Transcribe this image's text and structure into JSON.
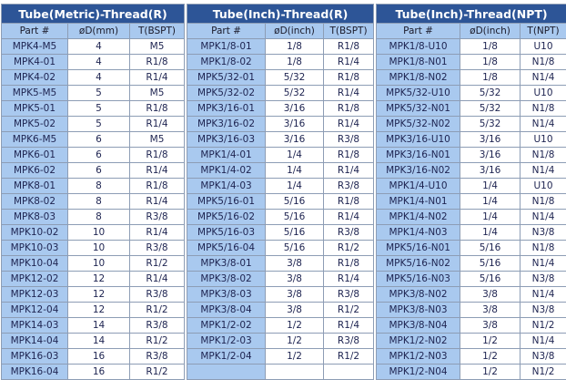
{
  "tables": [
    {
      "title": "Tube(Metric)-Thread(R)",
      "columns": [
        "Part #",
        "øD(mm)",
        "T(BSPT)"
      ],
      "rows": [
        [
          "MPK4-M5",
          "4",
          "M5"
        ],
        [
          "MPK4-01",
          "4",
          "R1/8"
        ],
        [
          "MPK4-02",
          "4",
          "R1/4"
        ],
        [
          "MPK5-M5",
          "5",
          "M5"
        ],
        [
          "MPK5-01",
          "5",
          "R1/8"
        ],
        [
          "MPK5-02",
          "5",
          "R1/4"
        ],
        [
          "MPK6-M5",
          "6",
          "M5"
        ],
        [
          "MPK6-01",
          "6",
          "R1/8"
        ],
        [
          "MPK6-02",
          "6",
          "R1/4"
        ],
        [
          "MPK8-01",
          "8",
          "R1/8"
        ],
        [
          "MPK8-02",
          "8",
          "R1/4"
        ],
        [
          "MPK8-03",
          "8",
          "R3/8"
        ],
        [
          "MPK10-02",
          "10",
          "R1/4"
        ],
        [
          "MPK10-03",
          "10",
          "R3/8"
        ],
        [
          "MPK10-04",
          "10",
          "R1/2"
        ],
        [
          "MPK12-02",
          "12",
          "R1/4"
        ],
        [
          "MPK12-03",
          "12",
          "R3/8"
        ],
        [
          "MPK12-04",
          "12",
          "R1/2"
        ],
        [
          "MPK14-03",
          "14",
          "R3/8"
        ],
        [
          "MPK14-04",
          "14",
          "R1/2"
        ],
        [
          "MPK16-03",
          "16",
          "R3/8"
        ],
        [
          "MPK16-04",
          "16",
          "R1/2"
        ]
      ]
    },
    {
      "title": "Tube(Inch)-Thread(R)",
      "columns": [
        "Part #",
        "øD(inch)",
        "T(BSPT)"
      ],
      "rows": [
        [
          "MPK1/8-01",
          "1/8",
          "R1/8"
        ],
        [
          "MPK1/8-02",
          "1/8",
          "R1/4"
        ],
        [
          "MPK5/32-01",
          "5/32",
          "R1/8"
        ],
        [
          "MPK5/32-02",
          "5/32",
          "R1/4"
        ],
        [
          "MPK3/16-01",
          "3/16",
          "R1/8"
        ],
        [
          "MPK3/16-02",
          "3/16",
          "R1/4"
        ],
        [
          "MPK3/16-03",
          "3/16",
          "R3/8"
        ],
        [
          "MPK1/4-01",
          "1/4",
          "R1/8"
        ],
        [
          "MPK1/4-02",
          "1/4",
          "R1/4"
        ],
        [
          "MPK1/4-03",
          "1/4",
          "R3/8"
        ],
        [
          "MPK5/16-01",
          "5/16",
          "R1/8"
        ],
        [
          "MPK5/16-02",
          "5/16",
          "R1/4"
        ],
        [
          "MPK5/16-03",
          "5/16",
          "R3/8"
        ],
        [
          "MPK5/16-04",
          "5/16",
          "R1/2"
        ],
        [
          "MPK3/8-01",
          "3/8",
          "R1/8"
        ],
        [
          "MPK3/8-02",
          "3/8",
          "R1/4"
        ],
        [
          "MPK3/8-03",
          "3/8",
          "R3/8"
        ],
        [
          "MPK3/8-04",
          "3/8",
          "R1/2"
        ],
        [
          "MPK1/2-02",
          "1/2",
          "R1/4"
        ],
        [
          "MPK1/2-03",
          "1/2",
          "R3/8"
        ],
        [
          "MPK1/2-04",
          "1/2",
          "R1/2"
        ]
      ]
    },
    {
      "title": "Tube(Inch)-Thread(NPT)",
      "columns": [
        "Part #",
        "øD(inch)",
        "T(NPT)"
      ],
      "rows": [
        [
          "MPK1/8-U10",
          "1/8",
          "U10"
        ],
        [
          "MPK1/8-N01",
          "1/8",
          "N1/8"
        ],
        [
          "MPK1/8-N02",
          "1/8",
          "N1/4"
        ],
        [
          "MPK5/32-U10",
          "5/32",
          "U10"
        ],
        [
          "MPK5/32-N01",
          "5/32",
          "N1/8"
        ],
        [
          "MPK5/32-N02",
          "5/32",
          "N1/4"
        ],
        [
          "MPK3/16-U10",
          "3/16",
          "U10"
        ],
        [
          "MPK3/16-N01",
          "3/16",
          "N1/8"
        ],
        [
          "MPK3/16-N02",
          "3/16",
          "N1/4"
        ],
        [
          "MPK1/4-U10",
          "1/4",
          "U10"
        ],
        [
          "MPK1/4-N01",
          "1/4",
          "N1/8"
        ],
        [
          "MPK1/4-N02",
          "1/4",
          "N1/4"
        ],
        [
          "MPK1/4-N03",
          "1/4",
          "N3/8"
        ],
        [
          "MPK5/16-N01",
          "5/16",
          "N1/8"
        ],
        [
          "MPK5/16-N02",
          "5/16",
          "N1/4"
        ],
        [
          "MPK5/16-N03",
          "5/16",
          "N3/8"
        ],
        [
          "MPK3/8-N02",
          "3/8",
          "N1/4"
        ],
        [
          "MPK3/8-N03",
          "3/8",
          "N3/8"
        ],
        [
          "MPK3/8-N04",
          "3/8",
          "N1/2"
        ],
        [
          "MPK1/2-N02",
          "1/2",
          "N1/4"
        ],
        [
          "MPK1/2-N03",
          "1/2",
          "N3/8"
        ],
        [
          "MPK1/2-N04",
          "1/2",
          "N1/2"
        ]
      ]
    }
  ]
}
